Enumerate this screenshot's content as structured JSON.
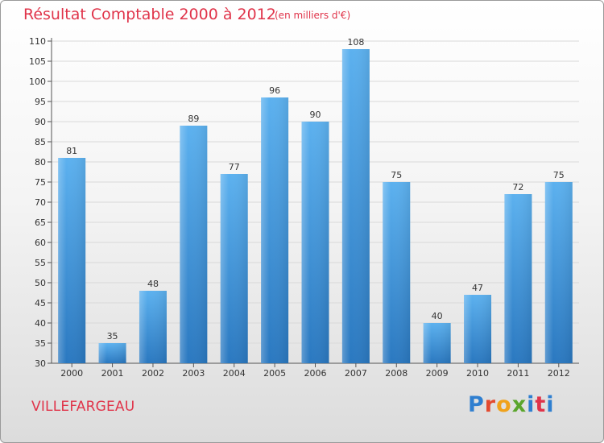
{
  "header": {
    "title": "Résultat Comptable 2000 à 2012",
    "unit": "(en milliers d'€)"
  },
  "footer": {
    "city": "VILLEFARGEAU",
    "logo": {
      "text": "Proxiti",
      "letter_colors": [
        "#2f7fd0",
        "#e34a2f",
        "#f0a21b",
        "#5aa52c",
        "#2f7fd0",
        "#e0344a",
        "#2f7fd0"
      ]
    }
  },
  "colors": {
    "bar": "#4a9fe0",
    "bar_dark": "#2a78c0",
    "accent": "#e0344a"
  },
  "chart_data": {
    "type": "bar",
    "title": "Résultat Comptable 2000 à 2012",
    "subtitle": "(en milliers d'€)",
    "categories": [
      "2000",
      "2001",
      "2002",
      "2003",
      "2004",
      "2005",
      "2006",
      "2007",
      "2008",
      "2009",
      "2010",
      "2011",
      "2012"
    ],
    "values": [
      81,
      35,
      48,
      89,
      77,
      96,
      90,
      108,
      75,
      40,
      47,
      72,
      75
    ],
    "ylim": [
      30,
      110
    ],
    "yticks": [
      30,
      35,
      40,
      45,
      50,
      55,
      60,
      65,
      70,
      75,
      80,
      85,
      90,
      95,
      100,
      105,
      110
    ],
    "grid": true,
    "data_labels": true
  }
}
